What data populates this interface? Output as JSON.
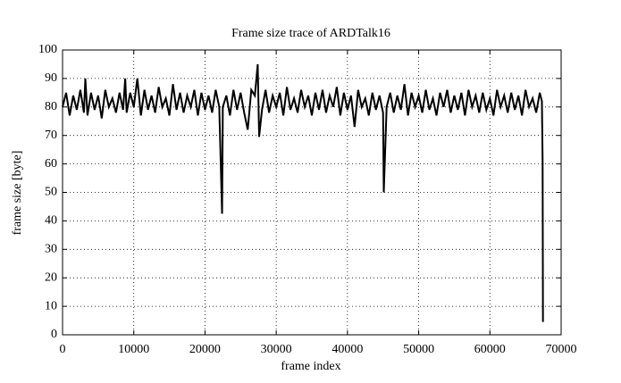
{
  "chart_data": {
    "type": "line",
    "title": "Frame size trace of ARDTalk16",
    "x_label": "frame index",
    "y_label": "frame size [byte]",
    "xlim": [
      0,
      70000
    ],
    "xticks": [
      0,
      10000,
      20000,
      30000,
      40000,
      50000,
      60000,
      70000
    ],
    "ylim": [
      0,
      100
    ],
    "yticks": [
      0,
      10,
      20,
      30,
      40,
      50,
      60,
      70,
      80,
      90,
      100
    ],
    "grid": true,
    "color": "#000000",
    "x": [
      0,
      500,
      1000,
      1500,
      2000,
      2500,
      3000,
      3200,
      3500,
      4000,
      4500,
      5000,
      5500,
      6000,
      6500,
      7000,
      7500,
      8000,
      8500,
      8800,
      9000,
      9500,
      10000,
      10500,
      11000,
      11500,
      12000,
      12500,
      13000,
      13500,
      14000,
      14500,
      15000,
      15500,
      16000,
      16500,
      17000,
      17500,
      18000,
      18500,
      19000,
      19500,
      20000,
      20500,
      21000,
      21500,
      22000,
      22400,
      22500,
      23000,
      23500,
      24000,
      24500,
      25000,
      25500,
      26000,
      26500,
      27000,
      27400,
      27600,
      28000,
      28500,
      29000,
      29500,
      30000,
      30500,
      31000,
      31500,
      32000,
      32500,
      33000,
      33500,
      34000,
      34500,
      35000,
      35500,
      36000,
      36500,
      37000,
      37500,
      38000,
      38500,
      39000,
      39500,
      40000,
      40500,
      41000,
      41500,
      42000,
      42500,
      43000,
      43500,
      44000,
      44500,
      45000,
      45100,
      45500,
      46000,
      46500,
      47000,
      47500,
      48000,
      48500,
      49000,
      49500,
      50000,
      50500,
      51000,
      51500,
      52000,
      52500,
      53000,
      53500,
      54000,
      54500,
      55000,
      55500,
      56000,
      56500,
      57000,
      57500,
      58000,
      58500,
      59000,
      59500,
      60000,
      60500,
      61000,
      61500,
      62000,
      62500,
      63000,
      63500,
      64000,
      64500,
      65000,
      65500,
      66000,
      66500,
      67000,
      67300,
      67400,
      67450
    ],
    "values": [
      80,
      85,
      77,
      84,
      79,
      86,
      78,
      90,
      77,
      85,
      79,
      84,
      76,
      86,
      80,
      83,
      78,
      85,
      79,
      90,
      78,
      85,
      80,
      90,
      77,
      86,
      79,
      84,
      78,
      87,
      80,
      83,
      77,
      88,
      79,
      85,
      78,
      84,
      80,
      86,
      77,
      85,
      79,
      84,
      78,
      86,
      80,
      42.5,
      80,
      84,
      77,
      86,
      79,
      85,
      78,
      72,
      86,
      84,
      95,
      69.5,
      79,
      86,
      78,
      84,
      80,
      85,
      77,
      87,
      79,
      83,
      78,
      86,
      80,
      84,
      77,
      85,
      79,
      86,
      78,
      84,
      80,
      87,
      77,
      85,
      79,
      84,
      73,
      86,
      80,
      83,
      77,
      85,
      79,
      84,
      78,
      50,
      80,
      85,
      78,
      84,
      79,
      88,
      77,
      85,
      80,
      84,
      78,
      86,
      79,
      83,
      77,
      85,
      80,
      86,
      78,
      84,
      79,
      85,
      77,
      86,
      80,
      84,
      78,
      85,
      79,
      83,
      77,
      86,
      80,
      84,
      78,
      85,
      79,
      84,
      77,
      86,
      80,
      83,
      78,
      85,
      82,
      61,
      4.5
    ]
  }
}
